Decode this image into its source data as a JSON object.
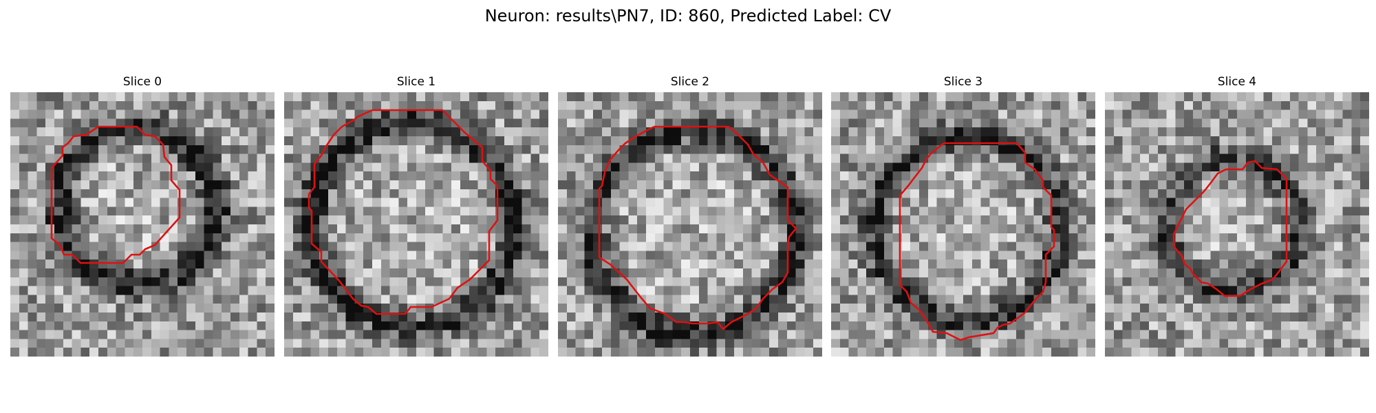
{
  "figure": {
    "title": "Neuron: results\\PN7, ID: 860, Predicted Label: CV"
  },
  "contour_color": "#e01010",
  "slices": [
    {
      "label": "Slice 0"
    },
    {
      "label": "Slice 1"
    },
    {
      "label": "Slice 2"
    },
    {
      "label": "Slice 3"
    },
    {
      "label": "Slice 4"
    }
  ]
}
